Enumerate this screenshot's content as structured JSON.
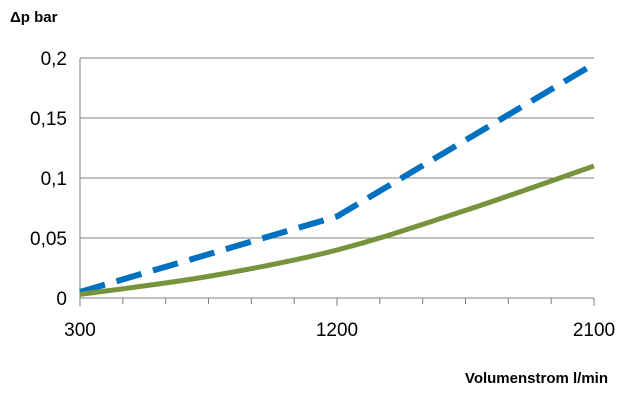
{
  "chart_data": {
    "type": "line",
    "title": "",
    "xlabel": "Volumenstrom l/min",
    "ylabel": "Δp bar",
    "xlim": [
      300,
      2100
    ],
    "ylim": [
      0,
      0.2
    ],
    "x_ticks": [
      300,
      1200,
      2100
    ],
    "x_tick_labels": [
      "300",
      "1200",
      "2100"
    ],
    "y_ticks": [
      0,
      0.05,
      0.1,
      0.15,
      0.2
    ],
    "y_tick_labels": [
      "0",
      "0,05",
      "0,1",
      "0,15",
      "0,2"
    ],
    "grid": "horizontal",
    "legend": "none",
    "series": [
      {
        "style": "dashed",
        "color": "#0070c0",
        "x": [
          300,
          1200,
          2100
        ],
        "y": [
          0.005,
          0.068,
          0.195
        ]
      },
      {
        "style": "solid",
        "color": "#77933c",
        "x": [
          300,
          750,
          1200,
          1650,
          2100
        ],
        "y": [
          0.003,
          0.018,
          0.04,
          0.073,
          0.11
        ]
      }
    ]
  }
}
